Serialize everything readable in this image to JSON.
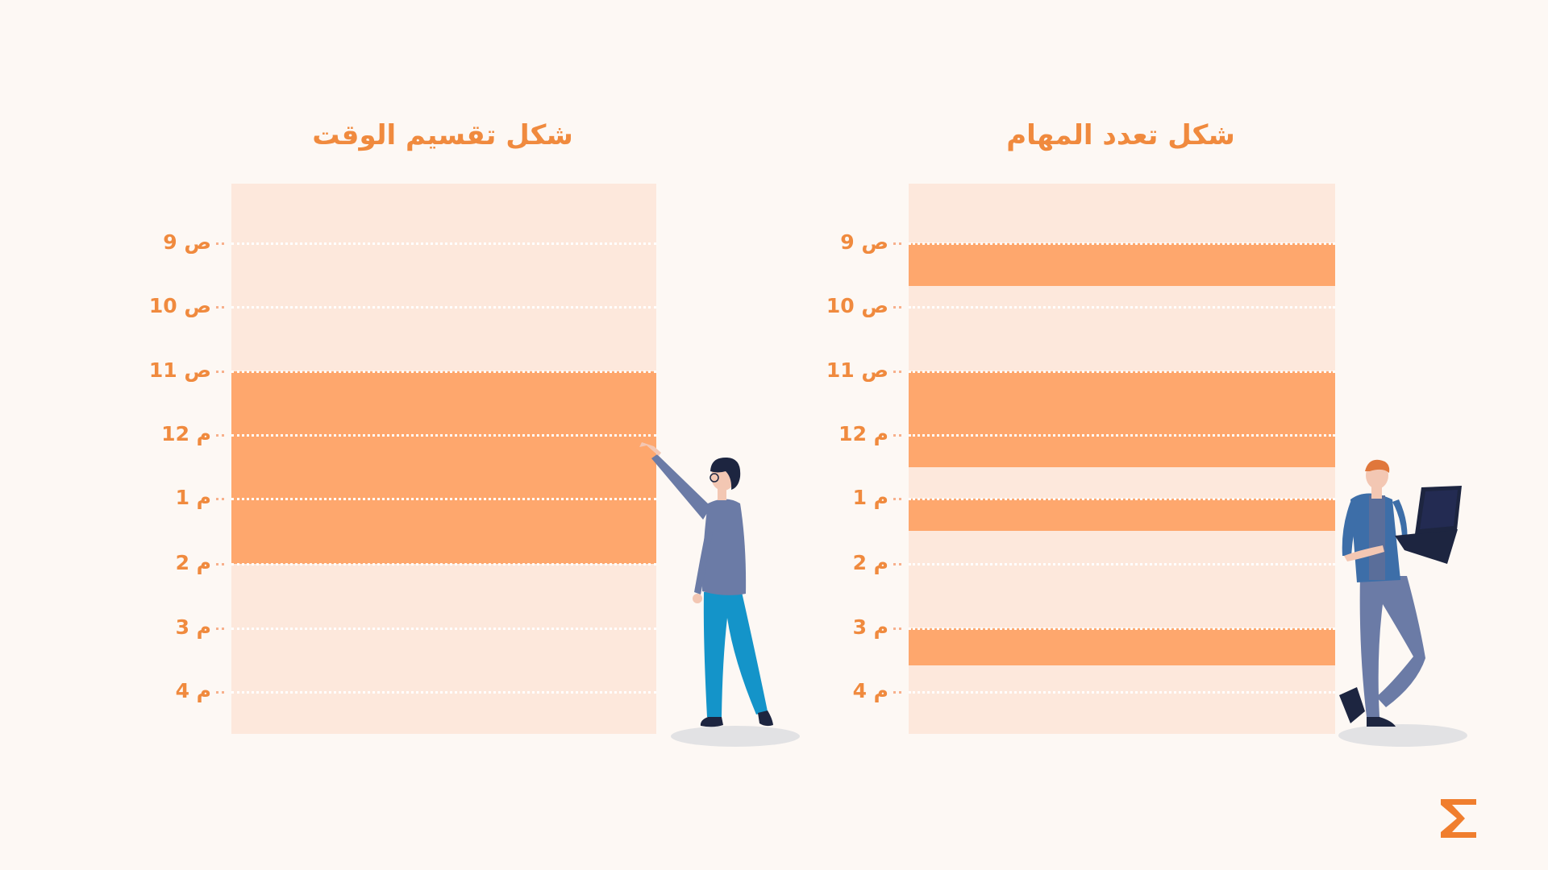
{
  "panels": [
    {
      "title": "شكل تقسيم الوقت",
      "times": [
        "9 ص",
        "10 ص",
        "11 ص",
        "12 م",
        "1 م",
        "2 م",
        "3 م",
        "4 م"
      ],
      "busy_blocks": [
        {
          "start": "11 ص",
          "end": "2 م"
        }
      ]
    },
    {
      "title": "شكل تعدد المهام",
      "times": [
        "9 ص",
        "10 ص",
        "11 ص",
        "12 م",
        "1 م",
        "2 م",
        "3 م",
        "4 م"
      ],
      "busy_blocks": [
        {
          "start": "9 ص",
          "end": "9:40 ص"
        },
        {
          "start": "11 ص",
          "end": "12:30 م"
        },
        {
          "start": "1 م",
          "end": "1:30 م"
        },
        {
          "start": "3 م",
          "end": "3:35 م"
        }
      ]
    }
  ],
  "colors": {
    "background": "#fdf8f4",
    "panel": "#fde8dc",
    "busy": "#fea76d",
    "accent": "#f08a3e"
  },
  "icons": [
    "pointing-person-figure",
    "person-with-laptop-figure",
    "hourglass-logo-icon"
  ]
}
